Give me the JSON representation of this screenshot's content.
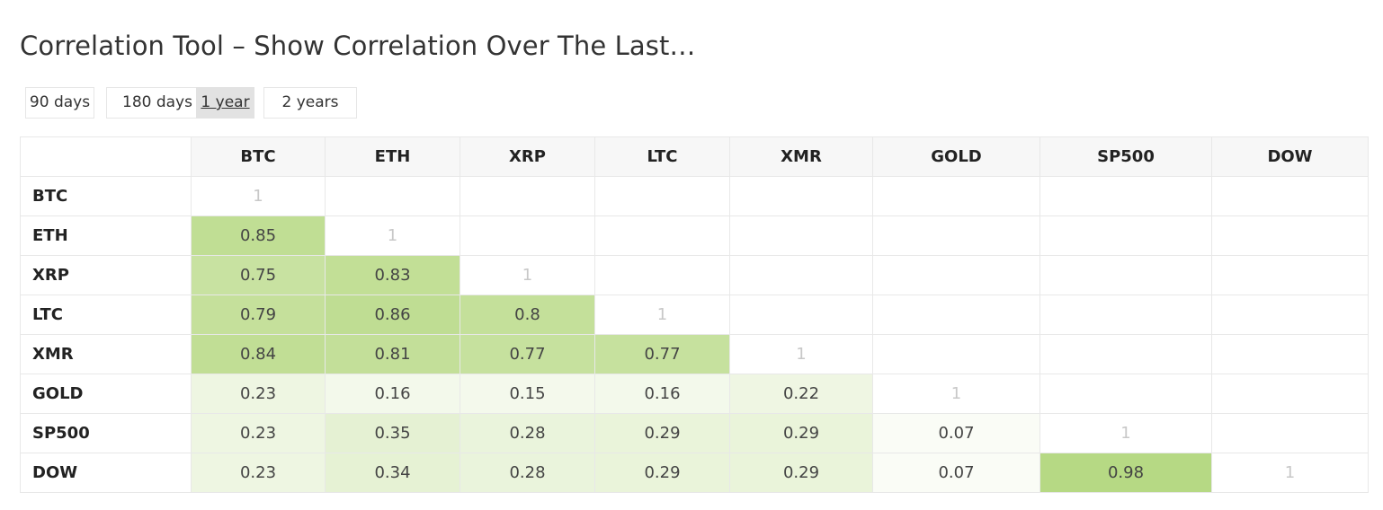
{
  "title": "Correlation Tool – Show Correlation Over The Last…",
  "periods": [
    "90 days",
    "180 days",
    "1 year",
    "2 years"
  ],
  "active_period": "1 year",
  "assets": [
    "BTC",
    "ETH",
    "XRP",
    "LTC",
    "XMR",
    "GOLD",
    "SP500",
    "DOW"
  ],
  "matrix": [
    [
      "1",
      "",
      "",
      "",
      "",
      "",
      "",
      ""
    ],
    [
      "0.85",
      "1",
      "",
      "",
      "",
      "",
      "",
      ""
    ],
    [
      "0.75",
      "0.83",
      "1",
      "",
      "",
      "",
      "",
      ""
    ],
    [
      "0.79",
      "0.86",
      "0.8",
      "1",
      "",
      "",
      "",
      ""
    ],
    [
      "0.84",
      "0.81",
      "0.77",
      "0.77",
      "1",
      "",
      "",
      ""
    ],
    [
      "0.23",
      "0.16",
      "0.15",
      "0.16",
      "0.22",
      "1",
      "",
      ""
    ],
    [
      "0.23",
      "0.35",
      "0.28",
      "0.29",
      "0.29",
      "0.07",
      "1",
      ""
    ],
    [
      "0.23",
      "0.34",
      "0.28",
      "0.29",
      "0.29",
      "0.07",
      "0.98",
      "1"
    ]
  ],
  "colors": {
    "heat_high": "#b5d881",
    "heat_low": "#ffffff",
    "diagonal_text": "#c8c8c8",
    "active_button": "#e2e2e2"
  }
}
